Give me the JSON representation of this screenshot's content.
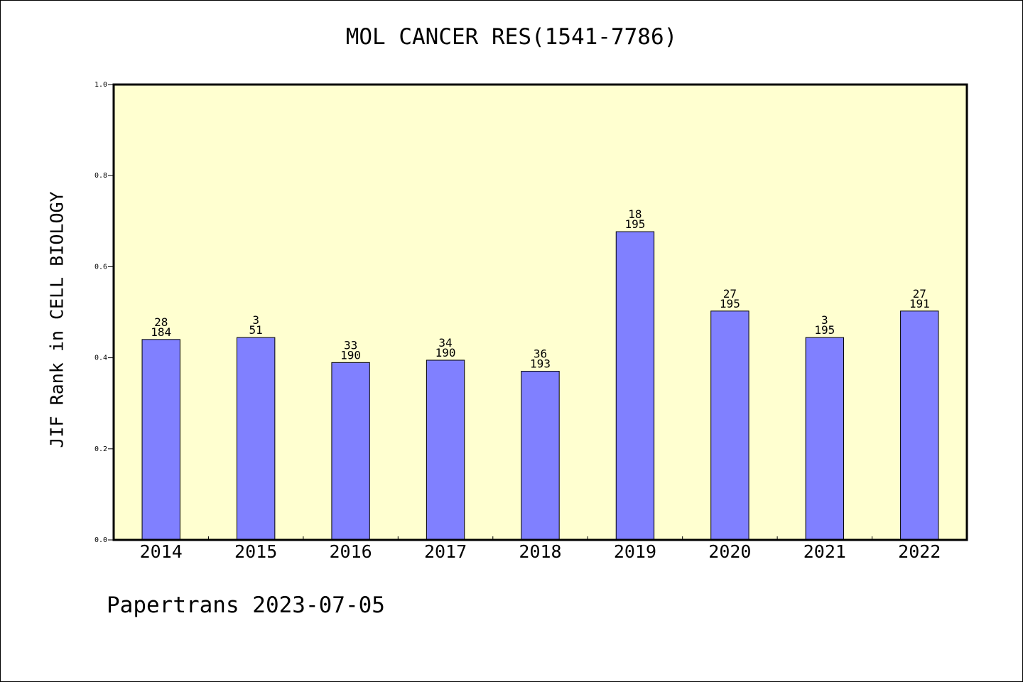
{
  "chart_data": {
    "type": "bar",
    "title": "MOL CANCER RES(1541-7786)",
    "xlabel": "",
    "ylabel": "JIF Rank in CELL BIOLOGY",
    "ylim": [
      0.0,
      1.0
    ],
    "yticks": [
      "0.0",
      "0.2",
      "0.4",
      "0.6",
      "0.8",
      "1.0"
    ],
    "categories": [
      "2014",
      "2015",
      "2016",
      "2017",
      "2018",
      "2019",
      "2020",
      "2021",
      "2022"
    ],
    "values": [
      0.4402,
      0.4444,
      0.3895,
      0.3947,
      0.3705,
      0.6769,
      0.5026,
      0.4444,
      0.5026
    ],
    "annotations": [
      {
        "rank": "28",
        "total": "184"
      },
      {
        "rank": "3",
        "total": "51"
      },
      {
        "rank": "33",
        "total": "190"
      },
      {
        "rank": "34",
        "total": "190"
      },
      {
        "rank": "36",
        "total": "193"
      },
      {
        "rank": "18",
        "total": "195"
      },
      {
        "rank": "27",
        "total": "195"
      },
      {
        "rank": "3",
        "total": "195"
      },
      {
        "rank": "27",
        "total": "191"
      }
    ],
    "grid": false,
    "legend": "none",
    "colors": {
      "plot_background": "#ffffd0",
      "bar_fill": "#8080ff",
      "bar_edge": "#000000"
    }
  },
  "footer": "Papertrans 2023-07-05"
}
